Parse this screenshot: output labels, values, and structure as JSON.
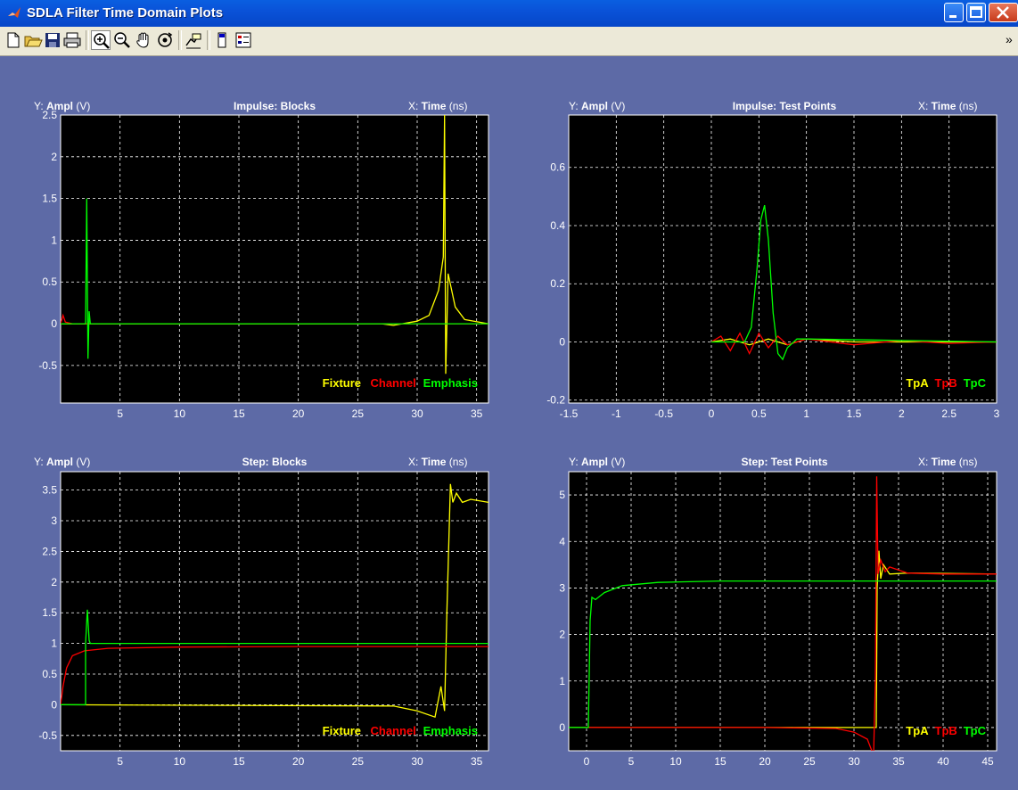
{
  "window": {
    "title": "SDLA Filter Time Domain Plots",
    "minimize": "_",
    "maximize": "□",
    "close": "X"
  },
  "toolbar": {
    "items": [
      "new-file-icon",
      "open-file-icon",
      "save-icon",
      "print-icon",
      "zoom-in-icon",
      "zoom-out-icon",
      "pan-icon",
      "rotate-3d-icon",
      "data-cursor-icon",
      "colorbar-icon",
      "legend-icon"
    ],
    "overflow": "»"
  },
  "colors": {
    "fixture": "#ffff00",
    "channel": "#ff0000",
    "emphasis": "#00ff00",
    "background": "#5d6aa6",
    "axes_bg": "#000000"
  },
  "chart_data": [
    {
      "type": "line",
      "title": "Impulse: Blocks",
      "ylabel": {
        "prefix": "Y:",
        "name": "Ampl",
        "unit": "(V)"
      },
      "xlabel": {
        "prefix": "X:",
        "name": "Time",
        "unit": "(ns)"
      },
      "xlim": [
        0,
        36
      ],
      "ylim": [
        -0.95,
        2.5
      ],
      "xticks": [
        "5",
        "10",
        "15",
        "20",
        "25",
        "30",
        "35"
      ],
      "yticks": [
        "-0.5",
        "0",
        "0.5",
        "1",
        "1.5",
        "2",
        "2.5"
      ],
      "grid": true,
      "legend": {
        "placement": "bottom-right",
        "entries": [
          "Fixture",
          "Channel",
          "Emphasis"
        ]
      },
      "series": [
        {
          "name": "Fixture",
          "color": "#ffff00",
          "x": [
            0,
            27,
            28,
            30,
            31,
            31.8,
            32.2,
            32.3,
            32.4,
            32.6,
            33.2,
            34,
            36
          ],
          "y": [
            0,
            0,
            -0.02,
            0.03,
            0.1,
            0.4,
            0.8,
            2.5,
            -0.6,
            0.6,
            0.2,
            0.05,
            0
          ]
        },
        {
          "name": "Channel",
          "color": "#ff0000",
          "x": [
            0,
            0.2,
            0.4,
            1,
            36
          ],
          "y": [
            0,
            0.1,
            0.02,
            0,
            0
          ]
        },
        {
          "name": "Emphasis",
          "color": "#00ff00",
          "x": [
            0,
            2.1,
            2.2,
            2.3,
            2.4,
            2.5,
            36
          ],
          "y": [
            0,
            0,
            1.5,
            -0.42,
            0.15,
            0,
            0
          ]
        }
      ]
    },
    {
      "type": "line",
      "title": "Impulse: Test Points",
      "ylabel": {
        "prefix": "Y:",
        "name": "Ampl",
        "unit": "(V)"
      },
      "xlabel": {
        "prefix": "X:",
        "name": "Time",
        "unit": "(ns)"
      },
      "xlim": [
        -1.5,
        3
      ],
      "ylim": [
        -0.21,
        0.78
      ],
      "xticks": [
        "-1.5",
        "-1",
        "-0.5",
        "0",
        "0.5",
        "1",
        "1.5",
        "2",
        "2.5",
        "3"
      ],
      "yticks": [
        "-0.2",
        "0",
        "0.2",
        "0.4",
        "0.6"
      ],
      "grid": true,
      "legend": {
        "placement": "bottom-right",
        "entries": [
          "TpA",
          "TpB",
          "TpC"
        ]
      },
      "series": [
        {
          "name": "TpA",
          "color": "#ffff00",
          "x": [
            0,
            0.2,
            0.4,
            0.6,
            0.8,
            1.0,
            1.5,
            2,
            3
          ],
          "y": [
            0,
            0.01,
            -0.01,
            0.01,
            -0.01,
            0.01,
            0,
            0,
            0
          ]
        },
        {
          "name": "TpB",
          "color": "#ff0000",
          "x": [
            0,
            0.1,
            0.2,
            0.3,
            0.4,
            0.5,
            0.6,
            0.7,
            0.8,
            1.0,
            1.5,
            2,
            2.5,
            3
          ],
          "y": [
            0,
            0.02,
            -0.03,
            0.03,
            -0.04,
            0.03,
            -0.02,
            0.02,
            -0.01,
            0.01,
            -0.01,
            0.005,
            -0.005,
            0
          ]
        },
        {
          "name": "TpC",
          "color": "#00ff00",
          "x": [
            0,
            0.35,
            0.42,
            0.48,
            0.52,
            0.56,
            0.6,
            0.65,
            0.7,
            0.75,
            0.8,
            0.9,
            1.0,
            3
          ],
          "y": [
            0,
            0,
            0.05,
            0.25,
            0.42,
            0.47,
            0.35,
            0.1,
            -0.04,
            -0.06,
            -0.02,
            0.01,
            0.01,
            0
          ]
        }
      ]
    },
    {
      "type": "line",
      "title": "Step: Blocks",
      "ylabel": {
        "prefix": "Y:",
        "name": "Ampl",
        "unit": "(V)"
      },
      "xlabel": {
        "prefix": "X:",
        "name": "Time",
        "unit": "(ns)"
      },
      "xlim": [
        0,
        36
      ],
      "ylim": [
        -0.75,
        3.8
      ],
      "xticks": [
        "5",
        "10",
        "15",
        "20",
        "25",
        "30",
        "35"
      ],
      "yticks": [
        "-0.5",
        "0",
        "0.5",
        "1",
        "1.5",
        "2",
        "2.5",
        "3",
        "3.5"
      ],
      "grid": true,
      "legend": {
        "placement": "bottom-right",
        "entries": [
          "Fixture",
          "Channel",
          "Emphasis"
        ]
      },
      "series": [
        {
          "name": "Fixture",
          "color": "#ffff00",
          "x": [
            0,
            28,
            30,
            31.5,
            32,
            32.3,
            32.5,
            32.8,
            33.0,
            33.3,
            33.8,
            34.5,
            36
          ],
          "y": [
            0,
            -0.02,
            -0.1,
            -0.2,
            0.3,
            -0.1,
            1.5,
            3.6,
            3.3,
            3.45,
            3.3,
            3.35,
            3.3
          ]
        },
        {
          "name": "Channel",
          "color": "#ff0000",
          "x": [
            0,
            0.2,
            0.5,
            1,
            2,
            4,
            10,
            20,
            36
          ],
          "y": [
            0,
            0.3,
            0.6,
            0.8,
            0.88,
            0.92,
            0.94,
            0.95,
            0.95
          ]
        },
        {
          "name": "Emphasis",
          "color": "#00ff00",
          "x": [
            0,
            2.1,
            2.1,
            2.25,
            2.4,
            2.5,
            36
          ],
          "y": [
            0,
            0,
            1.0,
            1.55,
            1.05,
            1.0,
            1.0
          ]
        }
      ]
    },
    {
      "type": "line",
      "title": "Step: Test Points",
      "ylabel": {
        "prefix": "Y:",
        "name": "Ampl",
        "unit": "(V)"
      },
      "xlabel": {
        "prefix": "X:",
        "name": "Time",
        "unit": "(ns)"
      },
      "xlim": [
        -2,
        46
      ],
      "ylim": [
        -0.5,
        5.5
      ],
      "xticks": [
        "0",
        "5",
        "10",
        "15",
        "20",
        "25",
        "30",
        "35",
        "40",
        "45"
      ],
      "yticks": [
        "0",
        "1",
        "2",
        "3",
        "4",
        "5"
      ],
      "grid": true,
      "legend": {
        "placement": "bottom-right",
        "entries": [
          "TpA",
          "TpB",
          "TpC"
        ]
      },
      "series": [
        {
          "name": "TpA",
          "color": "#ffff00",
          "x": [
            -2,
            32.5,
            32.6,
            32.8,
            33.0,
            33.3,
            34,
            36,
            46
          ],
          "y": [
            0,
            0,
            3.0,
            3.8,
            3.2,
            3.5,
            3.3,
            3.32,
            3.3
          ]
        },
        {
          "name": "TpB",
          "color": "#ff0000",
          "x": [
            0,
            10,
            20,
            28,
            30,
            31.5,
            32.2,
            32.4,
            32.55,
            32.7,
            33,
            33.5,
            34,
            36,
            40,
            46
          ],
          "y": [
            0,
            0,
            0,
            -0.02,
            -0.1,
            -0.25,
            -0.6,
            1.0,
            5.4,
            3.3,
            3.6,
            3.35,
            3.45,
            3.32,
            3.3,
            3.3
          ]
        },
        {
          "name": "TpC",
          "color": "#00ff00",
          "x": [
            -2,
            0.2,
            0.4,
            0.6,
            1,
            2,
            4,
            8,
            15,
            25,
            46
          ],
          "y": [
            0,
            0,
            2.3,
            2.8,
            2.75,
            2.9,
            3.05,
            3.12,
            3.15,
            3.15,
            3.15
          ]
        }
      ]
    }
  ]
}
